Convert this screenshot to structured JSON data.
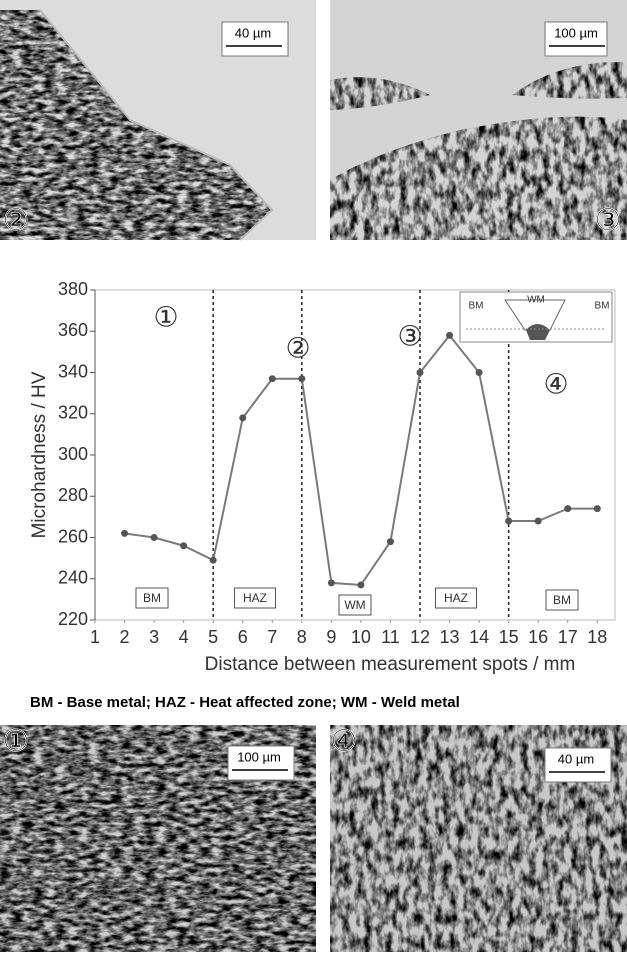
{
  "chart_data": {
    "type": "line",
    "x_label": "Distance between measurement spots / mm",
    "y_label": "Microhardness / HV",
    "x": [
      2,
      3,
      4,
      5,
      6,
      7,
      8,
      9,
      10,
      11,
      12,
      13,
      14,
      15,
      16,
      17,
      18
    ],
    "values": [
      262,
      260,
      256,
      249,
      318,
      337,
      337,
      238,
      237,
      258,
      340,
      358,
      340,
      268,
      268,
      274,
      274
    ],
    "color": "#7a7a7a",
    "xlim": [
      1,
      18.6
    ],
    "ylim": [
      220,
      380
    ],
    "xticks": [
      1,
      2,
      3,
      4,
      5,
      6,
      7,
      8,
      9,
      10,
      11,
      12,
      13,
      14,
      15,
      16,
      17,
      18
    ],
    "yticks": [
      220,
      240,
      260,
      280,
      300,
      320,
      340,
      360,
      380
    ],
    "boundaries": [
      5,
      8,
      12,
      15
    ],
    "zones": [
      "BM",
      "HAZ",
      "WM",
      "HAZ",
      "BM"
    ],
    "annotations": [
      "①",
      "②",
      "③",
      "④"
    ],
    "inset_labels": [
      "BM",
      "WM",
      "BM"
    ]
  },
  "caption": "BM - Base metal; HAZ - Heat affected zone; WM - Weld metal",
  "micrographs": [
    {
      "label": "②",
      "scale": "40 µm"
    },
    {
      "label": "③",
      "scale": "100 µm"
    },
    {
      "label": "①",
      "scale": "100 µm"
    },
    {
      "label": "④",
      "scale": "40 µm"
    }
  ]
}
